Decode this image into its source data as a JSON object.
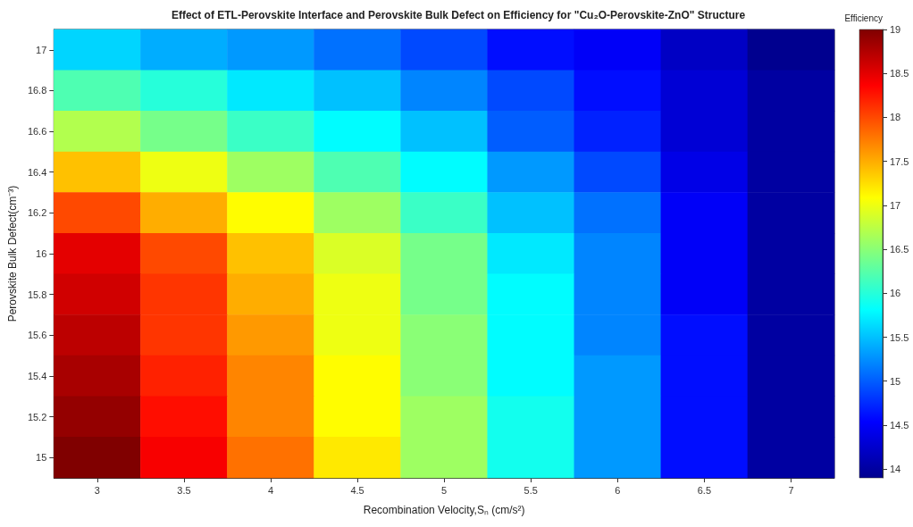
{
  "chart_data": {
    "type": "heatmap",
    "title": "Effect of ETL-Perovskite Interface and Perovskite Bulk Defect on Efficiency for \"Cu₂O-Perovskite-ZnO\" Structure",
    "xlabel": "Recombination Velocity,Sₙ (cm/s²)",
    "ylabel": "Perovskite Bulk Defect(cm⁻³)",
    "clabel": "Efficiency",
    "categories": [
      "3",
      "3.5",
      "4",
      "4.5",
      "5",
      "5.5",
      "6",
      "6.5",
      "7"
    ],
    "y_categories": [
      "17",
      "16.8",
      "16.6",
      "16.4",
      "16.2",
      "16",
      "15.8",
      "15.6",
      "15.4",
      "15.2",
      "15"
    ],
    "cells": [
      [
        15.6,
        15.4,
        15.3,
        15.1,
        14.9,
        14.6,
        14.5,
        14.2,
        13.9
      ],
      [
        16.2,
        16.0,
        15.7,
        15.5,
        15.2,
        14.9,
        14.6,
        14.3,
        14.0
      ],
      [
        16.7,
        16.4,
        16.1,
        15.8,
        15.5,
        15.0,
        14.7,
        14.3,
        14.0
      ],
      [
        17.4,
        17.0,
        16.6,
        16.2,
        15.8,
        15.3,
        14.9,
        14.4,
        14.0
      ],
      [
        18.0,
        17.5,
        17.1,
        16.6,
        16.1,
        15.5,
        15.1,
        14.5,
        14.0
      ],
      [
        18.5,
        18.0,
        17.4,
        16.9,
        16.4,
        15.7,
        15.2,
        14.5,
        14.0
      ],
      [
        18.6,
        18.1,
        17.5,
        17.0,
        16.4,
        15.8,
        15.2,
        14.5,
        14.0
      ],
      [
        18.7,
        18.1,
        17.6,
        17.0,
        16.5,
        15.8,
        15.2,
        14.6,
        14.0
      ],
      [
        18.8,
        18.2,
        17.7,
        17.1,
        16.5,
        15.8,
        15.3,
        14.6,
        14.0
      ],
      [
        18.9,
        18.3,
        17.7,
        17.1,
        16.6,
        15.9,
        15.3,
        14.6,
        14.0
      ],
      [
        19.0,
        18.4,
        17.8,
        17.2,
        16.6,
        15.9,
        15.3,
        14.6,
        14.0
      ]
    ],
    "clim": [
      13.9,
      19
    ],
    "cticks": [
      14,
      14.5,
      15,
      15.5,
      16,
      16.5,
      17,
      17.5,
      18,
      18.5,
      19
    ]
  }
}
